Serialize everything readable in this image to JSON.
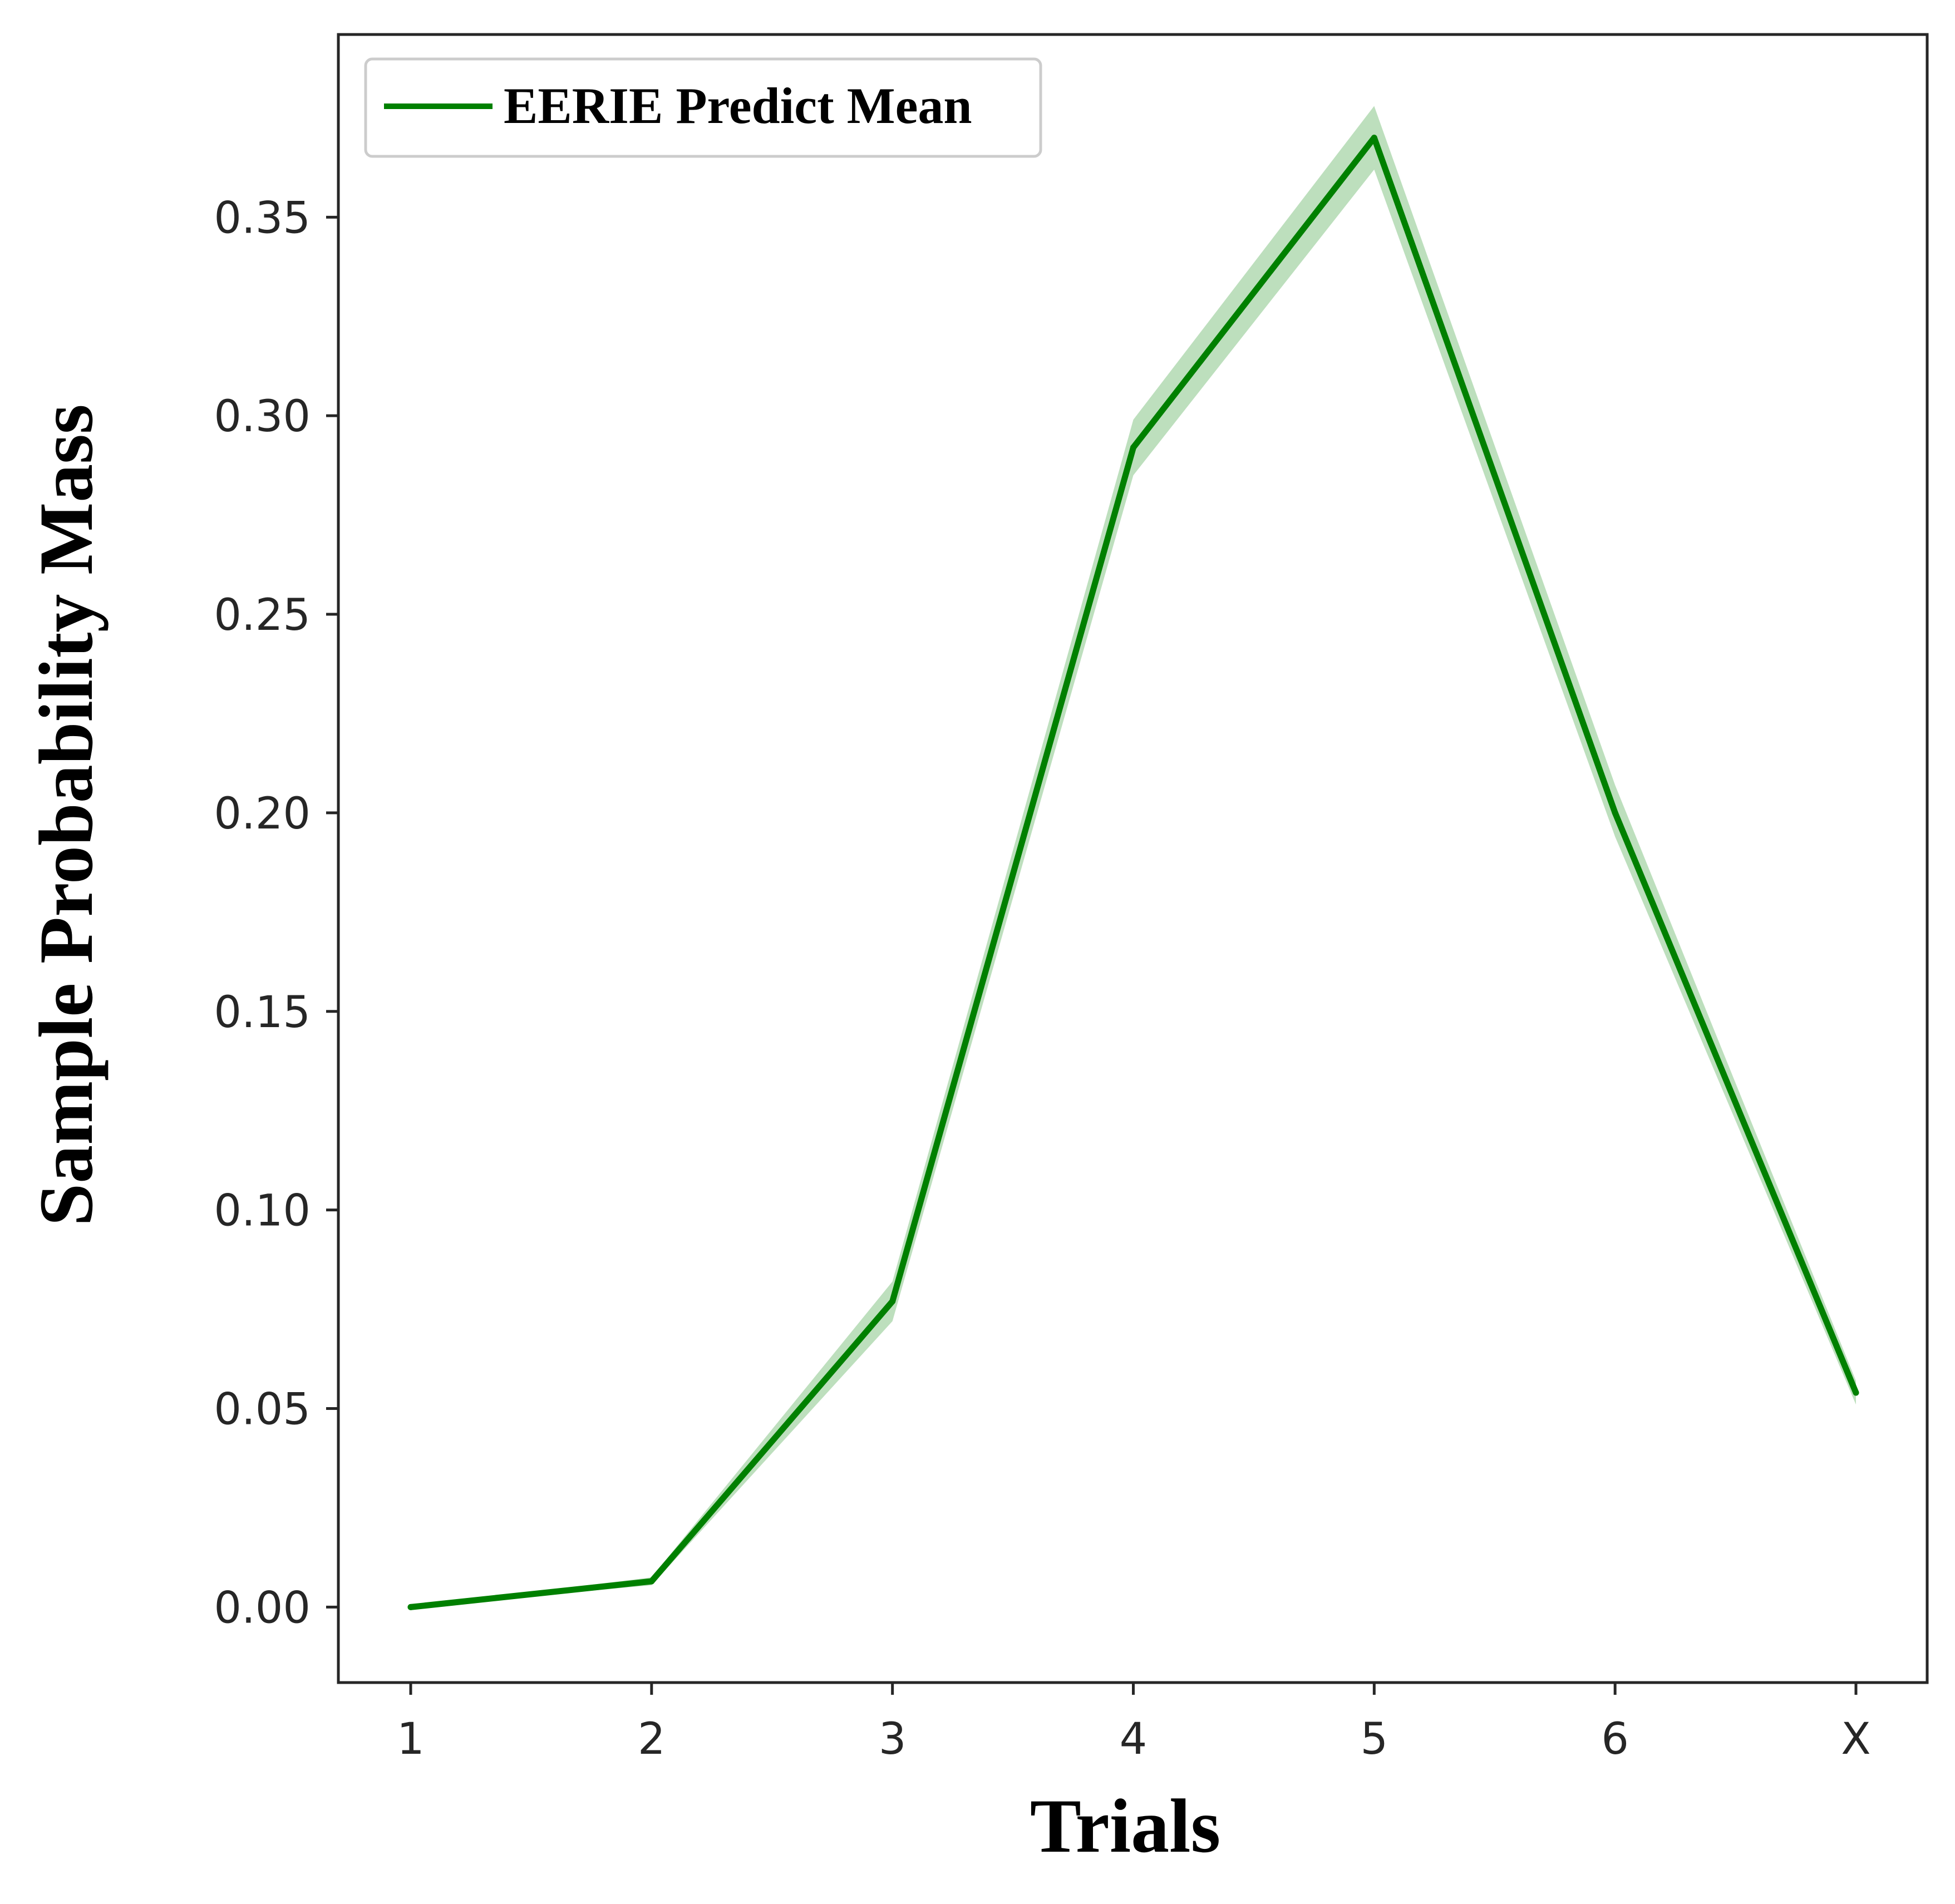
{
  "chart_data": {
    "type": "line",
    "categories": [
      "1",
      "2",
      "3",
      "4",
      "5",
      "6",
      "X"
    ],
    "series": [
      {
        "name": "EERIE Predict Mean",
        "values": [
          0.0,
          0.0065,
          0.077,
          0.292,
          0.37,
          0.2,
          0.054
        ],
        "band_lower": [
          0.0,
          0.0055,
          0.072,
          0.285,
          0.362,
          0.194,
          0.051
        ],
        "band_upper": [
          0.0,
          0.0075,
          0.082,
          0.299,
          0.378,
          0.207,
          0.057
        ]
      }
    ],
    "xlabel": "Trials",
    "ylabel": "Sample Probability Mass",
    "ylim": [
      -0.019,
      0.396
    ],
    "yticks": [
      "0.00",
      "0.05",
      "0.10",
      "0.15",
      "0.20",
      "0.25",
      "0.30",
      "0.35"
    ],
    "ytick_values": [
      0.0,
      0.05,
      0.1,
      0.15,
      0.2,
      0.25,
      0.3,
      0.35
    ],
    "grid": false,
    "legend_position": "top-left",
    "colors": {
      "line": "#008000",
      "band": "#86c586",
      "axes": "#262626"
    }
  }
}
